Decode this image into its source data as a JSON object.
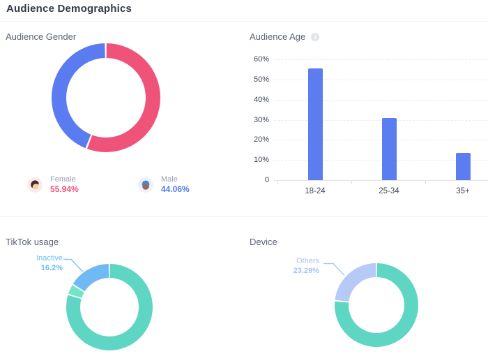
{
  "header": {
    "title": "Audience Demographics"
  },
  "gender": {
    "title": "Audience Gender",
    "legend": [
      {
        "label": "Female",
        "value": "55.94%",
        "color": "#f0537a",
        "icon": "female-avatar-icon"
      },
      {
        "label": "Male",
        "value": "44.06%",
        "color": "#4c7af2",
        "icon": "male-avatar-icon"
      }
    ]
  },
  "age": {
    "title": "Audience Age",
    "info_icon": "i"
  },
  "usage": {
    "title": "TikTok usage",
    "callout": {
      "label": "Inactive",
      "value": "16.2%",
      "color": "#6cc0f2"
    }
  },
  "device": {
    "title": "Device",
    "callout": {
      "label": "Others",
      "value": "23.29%",
      "color": "#a9c4f0"
    }
  },
  "chart_data": [
    {
      "id": "gender-donut",
      "type": "pie",
      "donut": true,
      "title": "Audience Gender",
      "labels": [
        "Female",
        "Male"
      ],
      "values": [
        55.94,
        44.06
      ],
      "segments": [
        {
          "label": "Female",
          "pct": 55.94,
          "color": "#f0537a"
        },
        {
          "label": "Male",
          "pct": 44.06,
          "color": "#5b7cf0"
        }
      ],
      "legend_position": "bottom",
      "start": "12-oclock-clockwise"
    },
    {
      "id": "age-bar",
      "type": "bar",
      "title": "Audience Age",
      "categories": [
        "18-24",
        "25-34",
        "35+"
      ],
      "values": [
        55.5,
        30.9,
        13.5
      ],
      "values_note": "estimated from bar heights; no data labels shown",
      "xlabel": "",
      "ylabel": "",
      "ylim": [
        0,
        60
      ],
      "yticks": [
        0,
        10,
        20,
        30,
        40,
        50,
        60
      ],
      "ytick_labels": [
        "0",
        "10%",
        "20%",
        "30%",
        "40%",
        "50%",
        "60%"
      ],
      "bar_color": "#5b7df0",
      "grid": "horizontal-dashed",
      "legend_position": "none"
    },
    {
      "id": "usage-donut",
      "type": "pie",
      "donut": true,
      "title": "TikTok usage",
      "partially_visible": true,
      "segments": [
        {
          "label": "",
          "pct": 79.8,
          "color": "#5ed6c3",
          "note": "main segment, label cut off"
        },
        {
          "label": "",
          "pct": 4.0,
          "color": "#74e4c4",
          "note": "sliver, mostly cut off"
        },
        {
          "label": "Inactive",
          "pct": 16.2,
          "color": "#6fb9f5"
        }
      ],
      "start": "12-oclock-clockwise"
    },
    {
      "id": "device-donut",
      "type": "pie",
      "donut": true,
      "title": "Device",
      "partially_visible": true,
      "segments": [
        {
          "label": "",
          "pct": 76.71,
          "color": "#5ed6c3",
          "note": "main segment, label cut off"
        },
        {
          "label": "Others",
          "pct": 23.29,
          "color": "#b5caf7"
        }
      ],
      "start": "12-oclock-clockwise"
    }
  ]
}
